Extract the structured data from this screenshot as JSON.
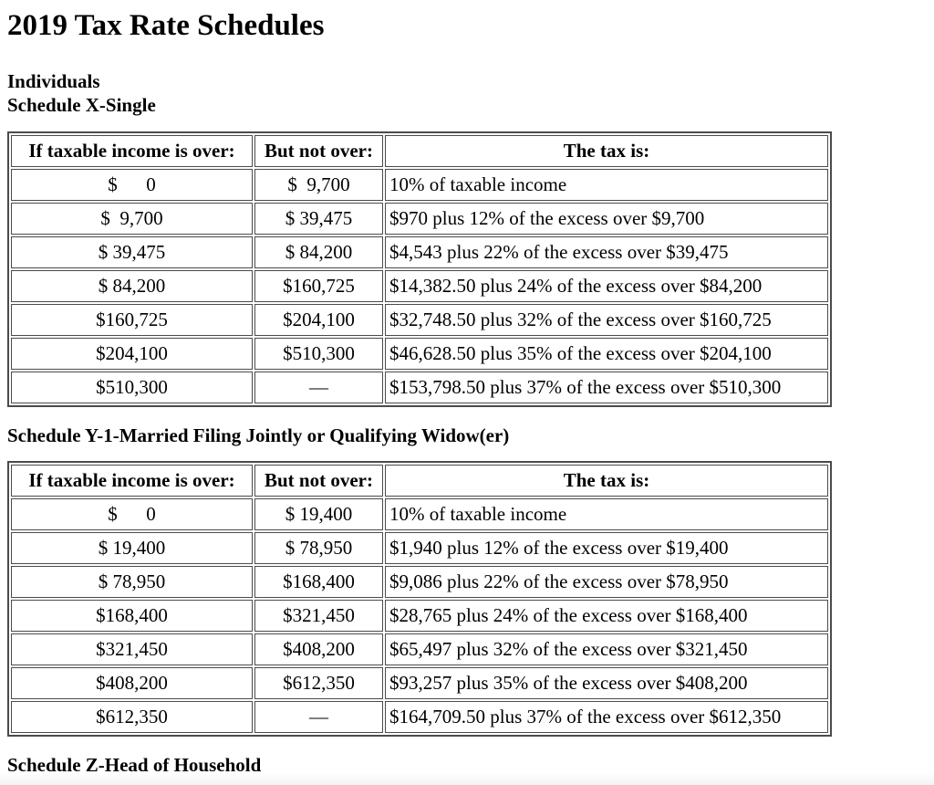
{
  "title": "2019 Tax Rate Schedules",
  "group_label": "Individuals",
  "columns": {
    "over": "If taxable income is over:",
    "not_over": "But not over:",
    "tax": "The tax is:"
  },
  "schedule_x": {
    "heading": "Schedule X-Single",
    "rows": [
      {
        "over": "$      0",
        "not_over": "$  9,700",
        "tax": "10% of taxable income"
      },
      {
        "over": "$  9,700",
        "not_over": "$ 39,475",
        "tax": "$970 plus 12% of the excess over $9,700"
      },
      {
        "over": "$ 39,475",
        "not_over": "$ 84,200",
        "tax": "$4,543 plus 22% of the excess over $39,475"
      },
      {
        "over": "$ 84,200",
        "not_over": "$160,725",
        "tax": "$14,382.50 plus 24% of the excess over $84,200"
      },
      {
        "over": "$160,725",
        "not_over": "$204,100",
        "tax": "$32,748.50 plus 32% of the excess over $160,725"
      },
      {
        "over": "$204,100",
        "not_over": "$510,300",
        "tax": "$46,628.50 plus 35% of the excess over $204,100"
      },
      {
        "over": "$510,300",
        "not_over": "—",
        "tax": "$153,798.50 plus 37% of the excess over $510,300"
      }
    ]
  },
  "schedule_y1": {
    "heading": "Schedule Y-1-Married Filing Jointly or Qualifying Widow(er)",
    "rows": [
      {
        "over": "$      0",
        "not_over": "$ 19,400",
        "tax": "10% of taxable income"
      },
      {
        "over": "$ 19,400",
        "not_over": "$ 78,950",
        "tax": "$1,940 plus 12% of the excess over $19,400"
      },
      {
        "over": "$ 78,950",
        "not_over": "$168,400",
        "tax": "$9,086 plus 22% of the excess over $78,950"
      },
      {
        "over": "$168,400",
        "not_over": "$321,450",
        "tax": "$28,765 plus 24% of the excess over $168,400"
      },
      {
        "over": "$321,450",
        "not_over": "$408,200",
        "tax": "$65,497 plus 32% of the excess over $321,450"
      },
      {
        "over": "$408,200",
        "not_over": "$612,350",
        "tax": "$93,257 plus 35% of the excess over $408,200"
      },
      {
        "over": "$612,350",
        "not_over": "—",
        "tax": "$164,709.50 plus 37% of the excess over $612,350"
      }
    ]
  },
  "schedule_z": {
    "heading": "Schedule Z-Head of Household"
  },
  "colors": {
    "table_border": "#4b4b4b",
    "text": "#000000",
    "background": "#ffffff"
  }
}
